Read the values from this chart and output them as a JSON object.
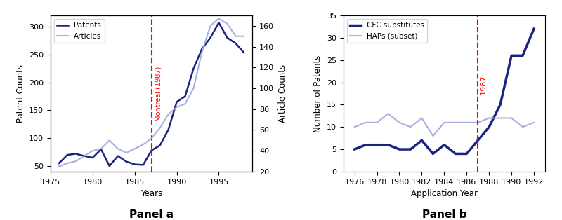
{
  "panel_a": {
    "years": [
      1976,
      1977,
      1978,
      1979,
      1980,
      1981,
      1982,
      1983,
      1984,
      1985,
      1986,
      1987,
      1988,
      1989,
      1990,
      1991,
      1992,
      1993,
      1994,
      1995,
      1996,
      1997,
      1998
    ],
    "patents": [
      55,
      70,
      72,
      68,
      65,
      80,
      50,
      68,
      58,
      53,
      52,
      78,
      87,
      115,
      165,
      175,
      225,
      260,
      280,
      307,
      280,
      270,
      253
    ],
    "articles": [
      25,
      28,
      30,
      35,
      40,
      42,
      50,
      42,
      38,
      42,
      46,
      52,
      62,
      75,
      82,
      85,
      100,
      135,
      160,
      167,
      162,
      150,
      150
    ],
    "vline_year": 1987,
    "vline_label": "Montreal (1987)",
    "xlabel": "Years",
    "ylabel_left": "Patent Counts",
    "ylabel_right": "Article Counts",
    "panel_label": "Panel a",
    "xlim": [
      1975,
      1999
    ],
    "ylim_left": [
      40,
      320
    ],
    "ylim_right": [
      20,
      170
    ],
    "xticks": [
      1975,
      1980,
      1985,
      1990,
      1995
    ],
    "patent_color": "#1a237e",
    "article_color": "#9fa8da",
    "vline_color": "red"
  },
  "panel_b": {
    "years": [
      1976,
      1977,
      1978,
      1979,
      1980,
      1981,
      1982,
      1983,
      1984,
      1985,
      1986,
      1987,
      1988,
      1989,
      1990,
      1991,
      1992
    ],
    "cfc": [
      5,
      6,
      6,
      6,
      5,
      5,
      7,
      4,
      6,
      4,
      4,
      7,
      10,
      15,
      26,
      26,
      32
    ],
    "haps": [
      10,
      11,
      11,
      13,
      11,
      10,
      12,
      8,
      11,
      11,
      11,
      11,
      12,
      12,
      12,
      10,
      11
    ],
    "vline_year": 1987,
    "vline_label": "1987",
    "xlabel": "Application Year",
    "ylabel": "Number of Patents",
    "panel_label": "Panel b",
    "xlim": [
      1975,
      1993
    ],
    "ylim": [
      0,
      35
    ],
    "yticks": [
      0,
      5,
      10,
      15,
      20,
      25,
      30,
      35
    ],
    "xticks": [
      1976,
      1978,
      1980,
      1982,
      1984,
      1986,
      1988,
      1990,
      1992
    ],
    "cfc_color": "#1a237e",
    "haps_color": "#9fa8da",
    "vline_color": "red"
  }
}
